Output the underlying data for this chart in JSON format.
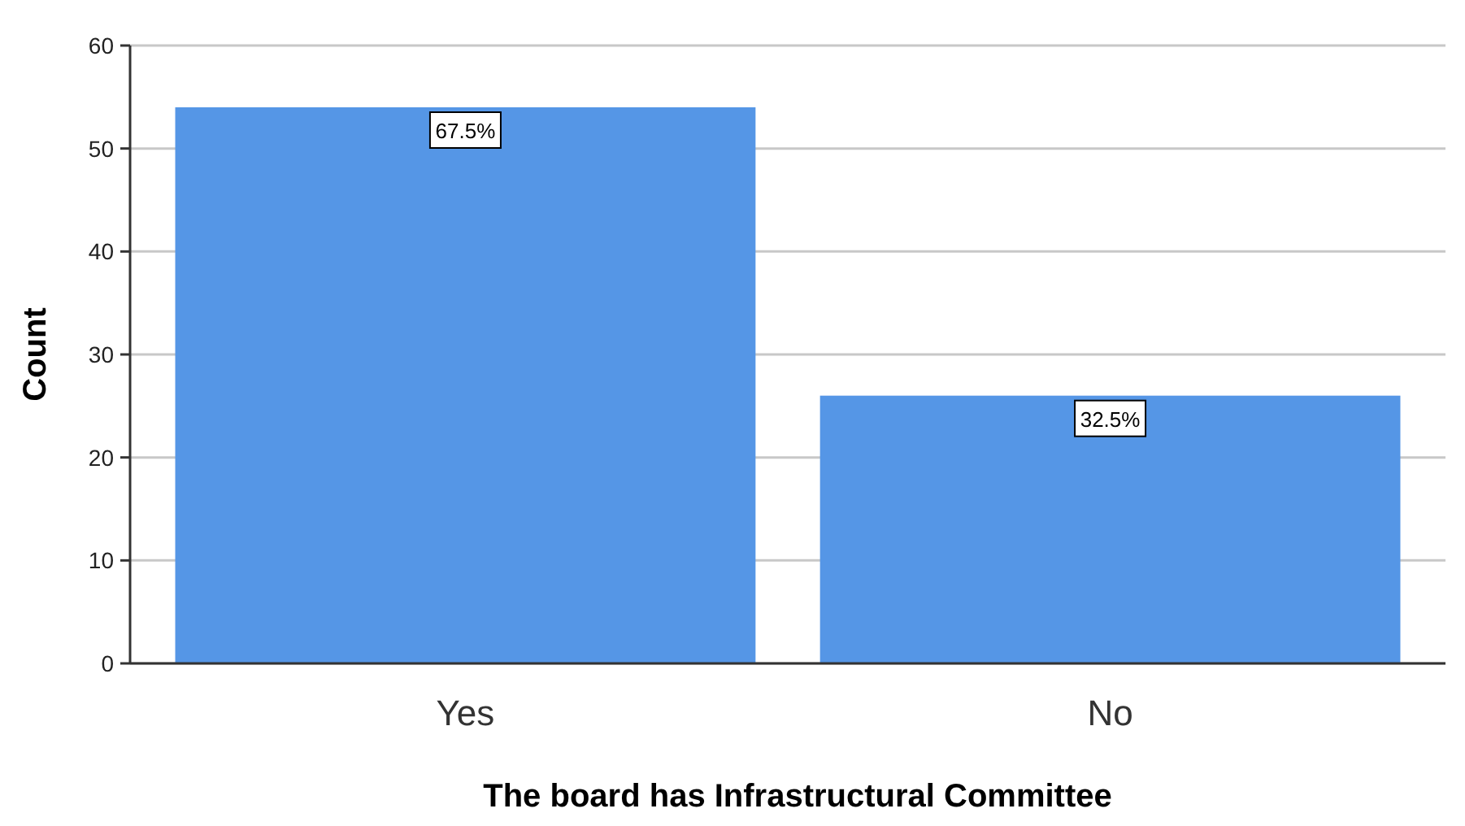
{
  "chart_data": {
    "type": "bar",
    "xlabel": "The board has Infrastructural Committee",
    "ylabel": "Count",
    "categories": [
      "Yes",
      "No"
    ],
    "values": [
      54,
      26
    ],
    "color": "#5596e6",
    "ylim": [
      0,
      60
    ],
    "yticks": [
      0,
      10,
      20,
      30,
      40,
      50,
      60
    ],
    "grid": "y",
    "annotations": [
      {
        "text": "67.5%",
        "x": "Yes",
        "y": 54
      },
      {
        "text": "32.5%",
        "x": "No",
        "y": 26
      }
    ]
  }
}
